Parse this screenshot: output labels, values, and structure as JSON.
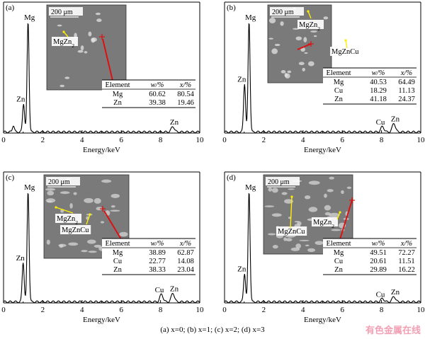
{
  "caption": "(a) x=0; (b) x=1; (c) x=2; (d) x=3",
  "watermark": "有色金属在线",
  "colors": {
    "spectrum": "#000000",
    "arrow_red": "#dd1111",
    "arrow_yellow": "#ffee00",
    "micrograph_bg": "#7a7a7a"
  },
  "panels": [
    {
      "label": "(a)",
      "scale_bar": "200 μm",
      "phase_labels": [
        "MgZn2"
      ],
      "table": {
        "headers": [
          "Element",
          "w/%",
          "x/%"
        ],
        "rows": [
          [
            "Mg",
            "60.62",
            "80.54"
          ],
          [
            "Zn",
            "39.38",
            "19.46"
          ]
        ]
      }
    },
    {
      "label": "(b)",
      "scale_bar": "200 μm",
      "phase_labels": [
        "MgZn2",
        "MgZnCu"
      ],
      "table": {
        "headers": [
          "Element",
          "w/%",
          "x/%"
        ],
        "rows": [
          [
            "Mg",
            "40.53",
            "64.49"
          ],
          [
            "Cu",
            "18.29",
            "11.13"
          ],
          [
            "Zn",
            "41.18",
            "24.37"
          ]
        ]
      }
    },
    {
      "label": "(c)",
      "scale_bar": "200 μm",
      "phase_labels": [
        "MgZn2",
        "MgZnCu"
      ],
      "table": {
        "headers": [
          "Element",
          "w/%",
          "x/%"
        ],
        "rows": [
          [
            "Mg",
            "38.89",
            "62.87"
          ],
          [
            "Cu",
            "22.77",
            "14.08"
          ],
          [
            "Zn",
            "38.33",
            "23.04"
          ]
        ]
      }
    },
    {
      "label": "(d)",
      "scale_bar": "200 μm",
      "phase_labels": [
        "MgZnCu",
        "MgZn2"
      ],
      "table": {
        "headers": [
          "Element",
          "w/%",
          "x/%"
        ],
        "rows": [
          [
            "Mg",
            "49.51",
            "72.27"
          ],
          [
            "Cu",
            "20.61",
            "11.51"
          ],
          [
            "Zn",
            "29.89",
            "16.22"
          ]
        ]
      }
    }
  ],
  "chart_data": [
    {
      "type": "line",
      "xlabel": "Energy/keV",
      "xlim": [
        0,
        10
      ],
      "xticks": [
        "0",
        "2",
        "4",
        "6",
        "8",
        "10"
      ],
      "peaks": [
        {
          "x": 0.5,
          "y": 0.06
        },
        {
          "x": 1.02,
          "y": 0.26,
          "label": "Zn"
        },
        {
          "x": 1.25,
          "y": 1.0,
          "label": "Mg"
        },
        {
          "x": 8.63,
          "y": 0.05,
          "label": "Zn"
        }
      ]
    },
    {
      "type": "line",
      "xlabel": "Energy/keV",
      "xlim": [
        0,
        10
      ],
      "xticks": [
        "0",
        "2",
        "4",
        "6",
        "8",
        "10"
      ],
      "peaks": [
        {
          "x": 1.02,
          "y": 0.44,
          "label": "Zn"
        },
        {
          "x": 1.25,
          "y": 1.0,
          "label": "Mg"
        },
        {
          "x": 8.05,
          "y": 0.05,
          "label": "Cu"
        },
        {
          "x": 8.63,
          "y": 0.08,
          "label": "Zn"
        }
      ]
    },
    {
      "type": "line",
      "xlabel": "Energy/keV",
      "xlim": [
        0,
        10
      ],
      "xticks": [
        "0",
        "2",
        "4",
        "6",
        "8",
        "10"
      ],
      "peaks": [
        {
          "x": 1.0,
          "y": 0.36,
          "label": "Zn"
        },
        {
          "x": 1.25,
          "y": 1.0,
          "label": "Mg"
        },
        {
          "x": 8.05,
          "y": 0.07,
          "label": "Cu"
        },
        {
          "x": 8.63,
          "y": 0.08,
          "label": "Zn"
        }
      ]
    },
    {
      "type": "line",
      "xlabel": "Energy/keV",
      "xlim": [
        0,
        10
      ],
      "xticks": [
        "0",
        "2",
        "4",
        "6",
        "8",
        "10"
      ],
      "peaks": [
        {
          "x": 1.02,
          "y": 0.26,
          "label": "Zn"
        },
        {
          "x": 1.25,
          "y": 1.0,
          "label": "Mg"
        },
        {
          "x": 8.05,
          "y": 0.03,
          "label": "Cu"
        },
        {
          "x": 8.63,
          "y": 0.05,
          "label": "Zn"
        }
      ]
    }
  ]
}
